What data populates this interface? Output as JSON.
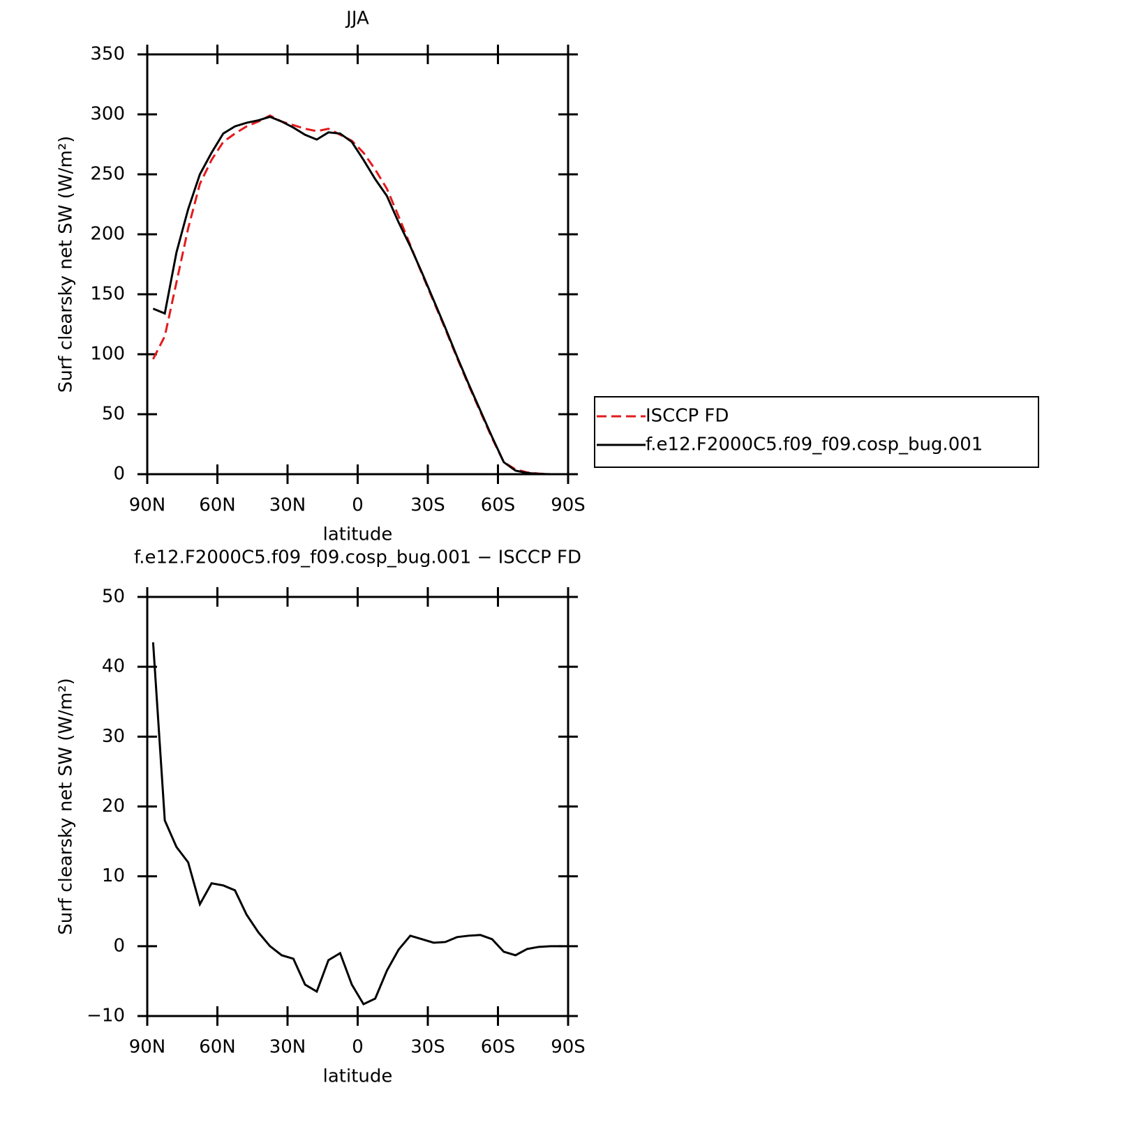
{
  "chart_data": [
    {
      "type": "line",
      "title": "JJA",
      "xlabel": "latitude",
      "ylabel": "Surf clearsky net SW (W/m²)",
      "x": [
        87.5,
        82.5,
        77.5,
        72.5,
        67.5,
        62.5,
        57.5,
        52.5,
        47.5,
        42.5,
        37.5,
        32.5,
        27.5,
        22.5,
        17.5,
        12.5,
        7.5,
        2.5,
        -2.5,
        -7.5,
        -12.5,
        -17.5,
        -22.5,
        -27.5,
        -32.5,
        -37.5,
        -42.5,
        -47.5,
        -52.5,
        -57.5,
        -62.5,
        -67.5,
        -72.5,
        -77.5,
        -82.5,
        -87.5
      ],
      "series": [
        {
          "name": "ISCCP FD",
          "color": "#e31a1c",
          "style": "dashed",
          "values": [
            96,
            115,
            160,
            205,
            242,
            262,
            277,
            284,
            290,
            294,
            299,
            294,
            291,
            288,
            286,
            288,
            283,
            278,
            268,
            254,
            238,
            215,
            191,
            167,
            144,
            121,
            97,
            74,
            52,
            30,
            10,
            4,
            1.5,
            0.5,
            0,
            0
          ]
        },
        {
          "name": "f.e12.F2000C5.f09_f09.cosp_bug.001",
          "color": "#000000",
          "style": "solid",
          "values": [
            138,
            134,
            185,
            221,
            250,
            268,
            284,
            290,
            293,
            295,
            298,
            294,
            289,
            283,
            279,
            285,
            284,
            277,
            262,
            246,
            232,
            210,
            190,
            168,
            145,
            122,
            98,
            75,
            53,
            31,
            10,
            3,
            1,
            0.3,
            0,
            0
          ]
        }
      ],
      "xlim": [
        90,
        -90
      ],
      "xticks": [
        {
          "value": 90,
          "label": "90N"
        },
        {
          "value": 60,
          "label": "60N"
        },
        {
          "value": 30,
          "label": "30N"
        },
        0,
        {
          "value": -30,
          "label": "30S"
        },
        {
          "value": -60,
          "label": "60S"
        },
        {
          "value": -90,
          "label": "90S"
        }
      ],
      "ylim": [
        0,
        350
      ],
      "yticks": [
        0,
        50,
        100,
        150,
        200,
        250,
        300,
        350
      ],
      "legend": "right"
    },
    {
      "type": "line",
      "title": "f.e12.F2000C5.f09_f09.cosp_bug.001 − ISCCP FD",
      "xlabel": "latitude",
      "ylabel": "Surf clearsky net SW (W/m²)",
      "x": [
        87.5,
        82.5,
        77.5,
        72.5,
        67.5,
        62.5,
        57.5,
        52.5,
        47.5,
        42.5,
        37.5,
        32.5,
        27.5,
        22.5,
        17.5,
        12.5,
        7.5,
        2.5,
        -2.5,
        -7.5,
        -12.5,
        -17.5,
        -22.5,
        -27.5,
        -32.5,
        -37.5,
        -42.5,
        -47.5,
        -52.5,
        -57.5,
        -62.5,
        -67.5,
        -72.5,
        -77.5,
        -82.5,
        -87.5
      ],
      "series": [
        {
          "color": "#000000",
          "style": "solid",
          "values": [
            43.5,
            18,
            14.2,
            12,
            6,
            9,
            8.7,
            8,
            4.5,
            2,
            0,
            -1.3,
            -1.8,
            -5.5,
            -6.5,
            -2,
            -1,
            -5.5,
            -8.3,
            -7.5,
            -3.5,
            -0.5,
            1.5,
            1,
            0.5,
            0.6,
            1.3,
            1.5,
            1.6,
            1,
            -0.8,
            -1.3,
            -0.4,
            -0.1,
            0,
            0
          ]
        }
      ],
      "xlim": [
        90,
        -90
      ],
      "xticks": [
        {
          "value": 90,
          "label": "90N"
        },
        {
          "value": 60,
          "label": "60N"
        },
        {
          "value": 30,
          "label": "30N"
        },
        0,
        {
          "value": -30,
          "label": "30S"
        },
        {
          "value": -60,
          "label": "60S"
        },
        {
          "value": -90,
          "label": "90S"
        }
      ],
      "ylim": [
        -10,
        50
      ],
      "yticks": [
        {
          "value": -10,
          "label": "−10"
        },
        0,
        10,
        20,
        30,
        40,
        50
      ]
    }
  ]
}
